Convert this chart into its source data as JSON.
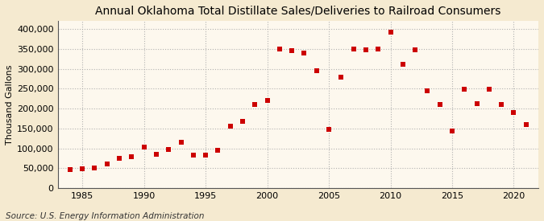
{
  "title": "Annual Oklahoma Total Distillate Sales/Deliveries to Railroad Consumers",
  "ylabel": "Thousand Gallons",
  "source": "Source: U.S. Energy Information Administration",
  "background_color": "#f5ead0",
  "plot_background_color": "#fdf8ee",
  "marker_color": "#cc0000",
  "marker": "s",
  "marker_size": 4,
  "years": [
    1984,
    1985,
    1986,
    1987,
    1988,
    1989,
    1990,
    1991,
    1992,
    1993,
    1994,
    1995,
    1996,
    1997,
    1998,
    1999,
    2000,
    2001,
    2002,
    2003,
    2004,
    2005,
    2006,
    2007,
    2008,
    2009,
    2010,
    2011,
    2012,
    2013,
    2014,
    2015,
    2016,
    2017,
    2018,
    2019,
    2020,
    2021
  ],
  "values": [
    47000,
    48000,
    50000,
    60000,
    75000,
    78000,
    103000,
    85000,
    97000,
    115000,
    82000,
    83000,
    95000,
    155000,
    168000,
    210000,
    220000,
    350000,
    345000,
    340000,
    295000,
    148000,
    280000,
    350000,
    348000,
    350000,
    393000,
    312000,
    348000,
    245000,
    210000,
    143000,
    248000,
    213000,
    248000,
    210000,
    190000,
    160000
  ],
  "xlim": [
    1983,
    2022
  ],
  "ylim": [
    0,
    420000
  ],
  "yticks": [
    0,
    50000,
    100000,
    150000,
    200000,
    250000,
    300000,
    350000,
    400000
  ],
  "ytick_labels": [
    "0",
    "50,000",
    "100,000",
    "150,000",
    "200,000",
    "250,000",
    "300,000",
    "350,000",
    "400,000"
  ],
  "xticks": [
    1985,
    1990,
    1995,
    2000,
    2005,
    2010,
    2015,
    2020
  ],
  "grid_color": "#aaaaaa",
  "grid_linestyle": ":",
  "grid_alpha": 0.9,
  "title_fontsize": 10,
  "label_fontsize": 8,
  "tick_fontsize": 8,
  "source_fontsize": 7.5
}
